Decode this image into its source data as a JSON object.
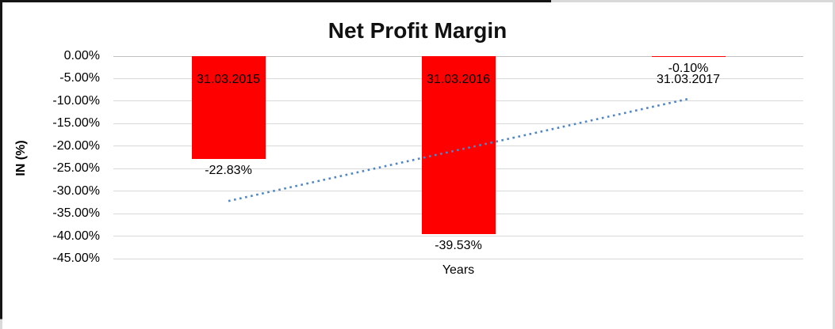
{
  "chart_data": {
    "type": "bar",
    "title": "Net Profit Margin",
    "categories": [
      "31.03.2015",
      "31.03.2016",
      "31.03.2017"
    ],
    "values": [
      -22.83,
      -39.53,
      -0.1
    ],
    "data_labels": [
      "-22.83%",
      "-39.53%",
      "-0.10%"
    ],
    "xlabel": "Years",
    "ylabel": "IN (%)",
    "ylim": [
      -45,
      0
    ],
    "ytick_values": [
      0,
      -5,
      -10,
      -15,
      -20,
      -25,
      -30,
      -35,
      -40,
      -45
    ],
    "ytick_labels": [
      "0.00%",
      "-5.00%",
      "-10.00%",
      "-15.00%",
      "-20.00%",
      "-25.00%",
      "-30.00%",
      "-35.00%",
      "-40.00%",
      "-45.00%"
    ],
    "grid": true,
    "legend": "none",
    "bar_color": "#FF0000",
    "grid_color": "#D9D9D9",
    "text_color": "#000000",
    "trendline": {
      "type": "linear",
      "style": "dotted",
      "color": "#4E86C8",
      "start_value": -32.2,
      "end_value": -9.5
    }
  }
}
